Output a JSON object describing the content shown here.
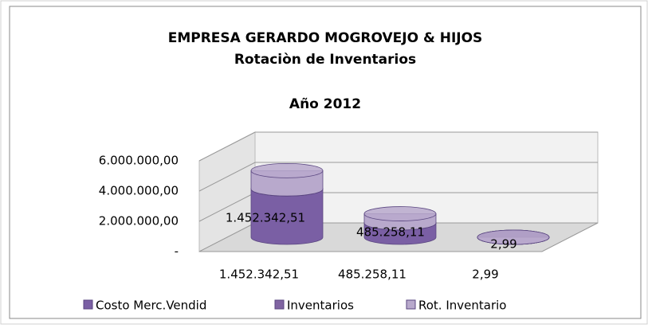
{
  "chart_data": {
    "type": "bar3d_stacked_cylinder",
    "title": "EMPRESA GERARDO MOGROVEJO & HIJOS",
    "subtitle": "Rotaciòn de Inventarios",
    "annotation": "Año 2012",
    "categories": [
      "1.452.342,51",
      "485.258,11",
      "2,99"
    ],
    "series": [
      {
        "name": "Costo Merc.Vendid",
        "color": "#7a5fa4",
        "values": [
          3200000,
          950000,
          0
        ]
      },
      {
        "name": "Inventarios",
        "color": "#8064a2",
        "values": [
          0,
          0,
          0
        ]
      },
      {
        "name": "Rot. Inventario",
        "color": "#b8a9cc",
        "values": [
          1200000,
          600000,
          0
        ]
      }
    ],
    "ylim": [
      0,
      6000000
    ],
    "yticks": [
      {
        "value": 0,
        "label": "-"
      },
      {
        "value": 2000000,
        "label": "2.000.000,00"
      },
      {
        "value": 4000000,
        "label": "4.000.000,00"
      },
      {
        "value": 6000000,
        "label": "6.000.000,00"
      }
    ],
    "grid": true
  }
}
